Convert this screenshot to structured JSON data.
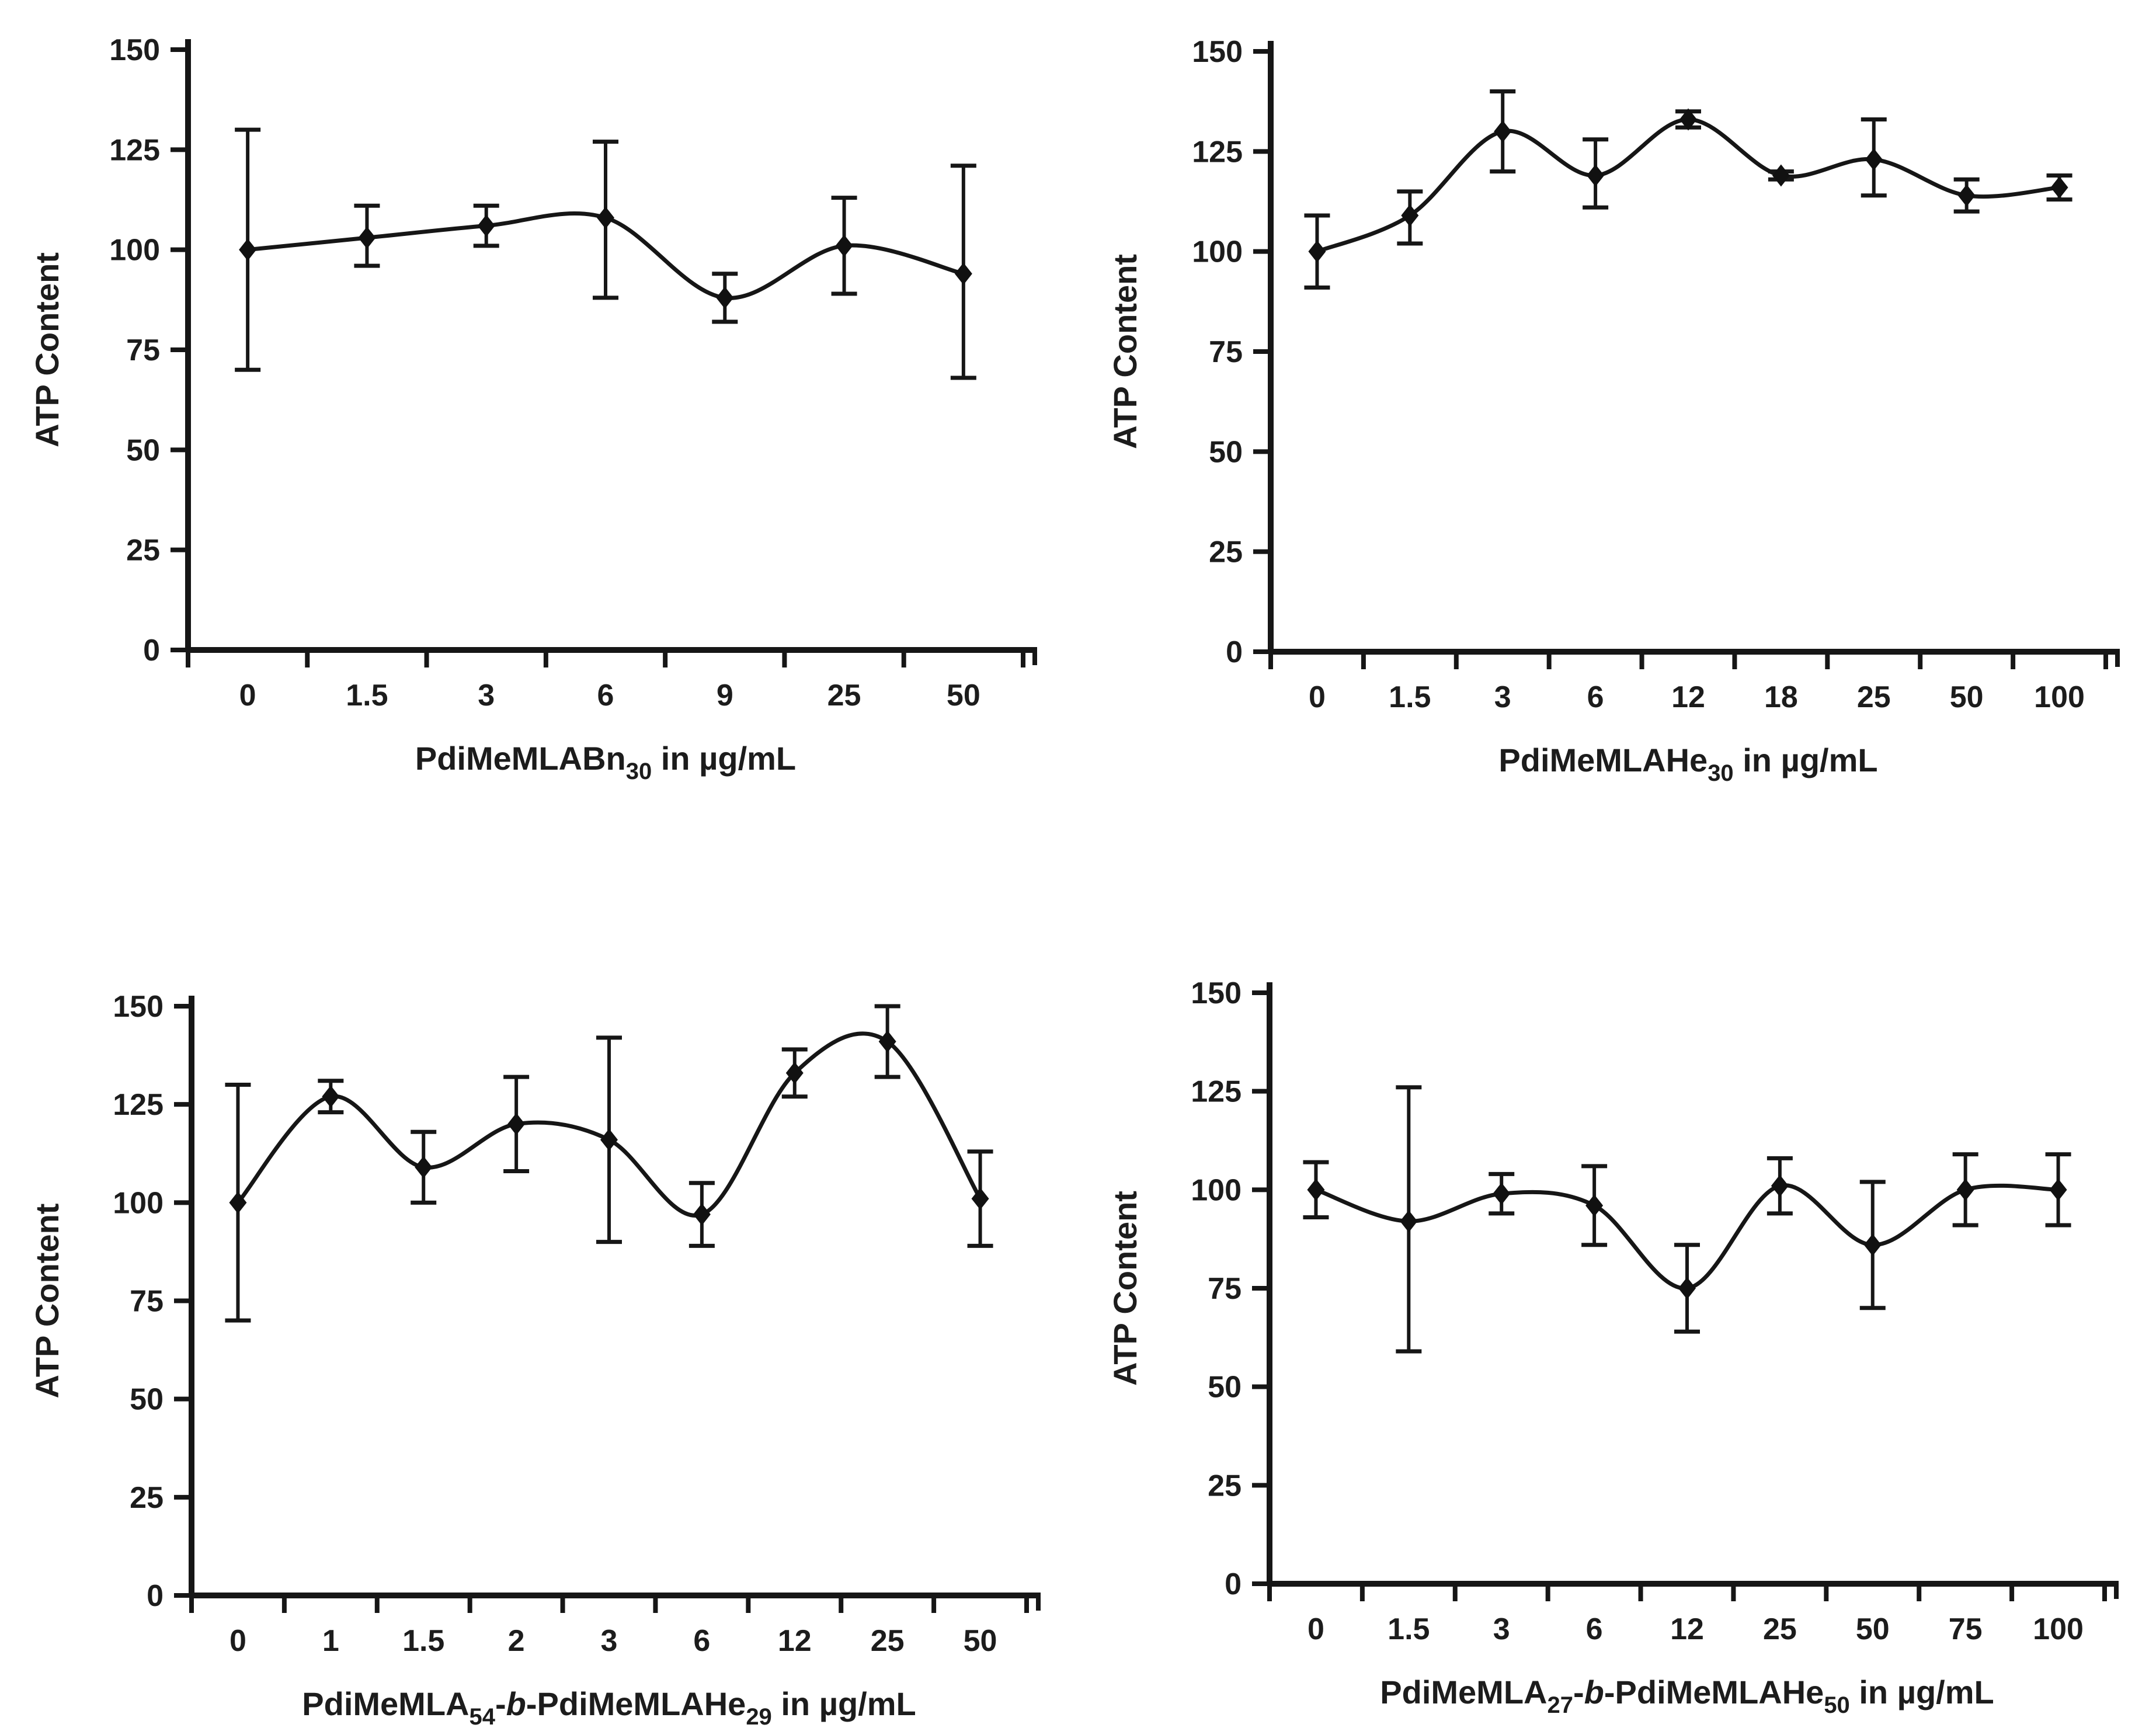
{
  "figure": {
    "description": "ATP Content versus polymer concentration, four panels with error bars",
    "background": "#ffffff"
  },
  "colors": {
    "line": "#161616",
    "marker": "#111111",
    "axis": "#161616",
    "text": "#1c1c1c"
  },
  "chart_data": [
    {
      "id": "top-left",
      "type": "line",
      "title": "",
      "ylabel": "ATP Content",
      "xlabel": "PdiMeMLABn30 in µg/mL",
      "xlabel_parts": [
        {
          "text": "PdiMeMLABn"
        },
        {
          "text": "30",
          "sub": true
        },
        {
          "text": " in µg/mL"
        }
      ],
      "ylim": [
        0,
        150
      ],
      "yticks": [
        "0",
        "25",
        "50",
        "75",
        "100",
        "125",
        "150"
      ],
      "grid": false,
      "legend": "none",
      "categories": [
        "0",
        "1.5",
        "3",
        "6",
        "9",
        "25",
        "50"
      ],
      "values": [
        100,
        103,
        106,
        108,
        88,
        101,
        94
      ],
      "err_plus": [
        30,
        8,
        5,
        19,
        6,
        12,
        27
      ],
      "err_minus": [
        30,
        7,
        5,
        20,
        6,
        12,
        26
      ]
    },
    {
      "id": "top-right",
      "type": "line",
      "title": "",
      "ylabel": "ATP Content",
      "xlabel": "PdiMeMLAHe30 in µg/mL",
      "xlabel_parts": [
        {
          "text": "PdiMeMLAHe"
        },
        {
          "text": "30",
          "sub": true
        },
        {
          "text": " in µg/mL"
        }
      ],
      "ylim": [
        0,
        150
      ],
      "yticks": [
        "0",
        "25",
        "50",
        "75",
        "100",
        "125",
        "150"
      ],
      "grid": false,
      "legend": "none",
      "categories": [
        "0",
        "1.5",
        "3",
        "6",
        "12",
        "18",
        "25",
        "50",
        "100"
      ],
      "values": [
        100,
        109,
        130,
        119,
        133,
        119,
        123,
        114,
        116
      ],
      "err_plus": [
        9,
        6,
        10,
        9,
        2,
        1,
        10,
        4,
        3
      ],
      "err_minus": [
        9,
        7,
        10,
        8,
        2,
        1,
        9,
        4,
        3
      ]
    },
    {
      "id": "bottom-left",
      "type": "line",
      "title": "",
      "ylabel": "ATP Content",
      "xlabel": "PdiMeMLA54-b-PdiMeMLAHe29 in µg/mL",
      "xlabel_parts": [
        {
          "text": "PdiMeMLA"
        },
        {
          "text": "54",
          "sub": true
        },
        {
          "text": "-"
        },
        {
          "text": "b",
          "italic": true
        },
        {
          "text": "-PdiMeMLAHe"
        },
        {
          "text": "29",
          "sub": true
        },
        {
          "text": " in µg/mL"
        }
      ],
      "ylim": [
        0,
        150
      ],
      "yticks": [
        "0",
        "25",
        "50",
        "75",
        "100",
        "125",
        "150"
      ],
      "grid": false,
      "legend": "none",
      "categories": [
        "0",
        "1",
        "1.5",
        "2",
        "3",
        "6",
        "12",
        "25",
        "50"
      ],
      "values": [
        100,
        127,
        109,
        120,
        116,
        97,
        133,
        141,
        101
      ],
      "err_plus": [
        30,
        4,
        9,
        12,
        26,
        8,
        6,
        9,
        12
      ],
      "err_minus": [
        30,
        4,
        9,
        12,
        26,
        8,
        6,
        9,
        12
      ]
    },
    {
      "id": "bottom-right",
      "type": "line",
      "title": "",
      "ylabel": "ATP Content",
      "xlabel": "PdiMeMLA27-b-PdiMeMLAHe50 in µg/mL",
      "xlabel_parts": [
        {
          "text": "PdiMeMLA"
        },
        {
          "text": "27",
          "sub": true
        },
        {
          "text": "-"
        },
        {
          "text": "b",
          "italic": true
        },
        {
          "text": "-PdiMeMLAHe"
        },
        {
          "text": "50",
          "sub": true
        },
        {
          "text": " in µg/mL"
        }
      ],
      "ylim": [
        0,
        150
      ],
      "yticks": [
        "0",
        "25",
        "50",
        "75",
        "100",
        "125",
        "150"
      ],
      "grid": false,
      "legend": "none",
      "categories": [
        "0",
        "1.5",
        "3",
        "6",
        "12",
        "25",
        "50",
        "75",
        "100"
      ],
      "values": [
        100,
        92,
        99,
        96,
        75,
        101,
        86,
        100,
        100
      ],
      "err_plus": [
        7,
        34,
        5,
        10,
        11,
        7,
        16,
        9,
        9
      ],
      "err_minus": [
        7,
        33,
        5,
        10,
        11,
        7,
        16,
        9,
        9
      ]
    }
  ]
}
